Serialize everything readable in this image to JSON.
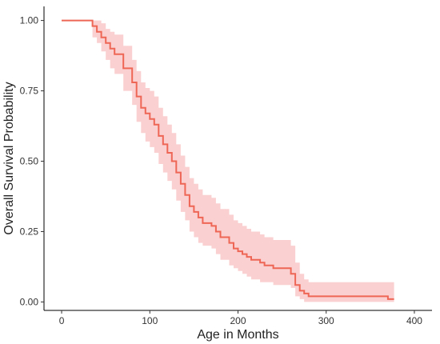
{
  "chart_data": {
    "type": "line",
    "title": "",
    "xlabel": "Age in Months",
    "ylabel": "Overall Survival Probability",
    "xlim": [
      -20,
      420
    ],
    "ylim": [
      -0.03,
      1.05
    ],
    "x_ticks": [
      0,
      100,
      200,
      300,
      400
    ],
    "x_tick_labels": [
      "0",
      "100",
      "200",
      "300",
      "400"
    ],
    "y_ticks": [
      0,
      0.25,
      0.5,
      0.75,
      1.0
    ],
    "y_tick_labels": [
      "0.00",
      "0.25",
      "0.50",
      "0.75",
      "1.00"
    ],
    "grid": false,
    "legend": "none",
    "colors": {
      "line": "#ee6655",
      "band": "#fbd0d0"
    },
    "series": [
      {
        "x": [
          0,
          35,
          40,
          45,
          50,
          55,
          60,
          70,
          80,
          85,
          90,
          95,
          100,
          105,
          110,
          115,
          120,
          125,
          130,
          135,
          140,
          145,
          150,
          155,
          160,
          170,
          175,
          180,
          190,
          195,
          200,
          205,
          210,
          215,
          225,
          230,
          240,
          260,
          265,
          270,
          275,
          280,
          295,
          330,
          370,
          377
        ],
        "y": [
          1.0,
          0.98,
          0.96,
          0.94,
          0.92,
          0.9,
          0.88,
          0.83,
          0.78,
          0.73,
          0.69,
          0.67,
          0.65,
          0.63,
          0.59,
          0.56,
          0.53,
          0.5,
          0.46,
          0.42,
          0.38,
          0.34,
          0.32,
          0.3,
          0.28,
          0.27,
          0.25,
          0.23,
          0.21,
          0.19,
          0.18,
          0.17,
          0.16,
          0.15,
          0.14,
          0.13,
          0.12,
          0.1,
          0.06,
          0.04,
          0.03,
          0.02,
          0.02,
          0.02,
          0.01,
          0.01
        ],
        "lower": [
          1.0,
          0.94,
          0.92,
          0.89,
          0.86,
          0.83,
          0.81,
          0.75,
          0.7,
          0.64,
          0.6,
          0.57,
          0.55,
          0.53,
          0.49,
          0.46,
          0.43,
          0.4,
          0.36,
          0.32,
          0.29,
          0.25,
          0.23,
          0.21,
          0.2,
          0.19,
          0.17,
          0.15,
          0.13,
          0.12,
          0.11,
          0.1,
          0.09,
          0.08,
          0.07,
          0.07,
          0.06,
          0.05,
          0.02,
          0.01,
          0.0,
          0.0,
          0.0,
          0.0,
          0.0,
          0.0
        ],
        "upper": [
          1.0,
          1.0,
          1.0,
          0.99,
          0.97,
          0.96,
          0.95,
          0.91,
          0.86,
          0.82,
          0.78,
          0.76,
          0.75,
          0.73,
          0.69,
          0.66,
          0.63,
          0.6,
          0.56,
          0.52,
          0.48,
          0.44,
          0.42,
          0.4,
          0.38,
          0.37,
          0.35,
          0.33,
          0.31,
          0.29,
          0.28,
          0.27,
          0.26,
          0.25,
          0.24,
          0.23,
          0.22,
          0.2,
          0.14,
          0.1,
          0.08,
          0.07,
          0.07,
          0.07,
          0.07,
          0.07
        ]
      }
    ]
  }
}
